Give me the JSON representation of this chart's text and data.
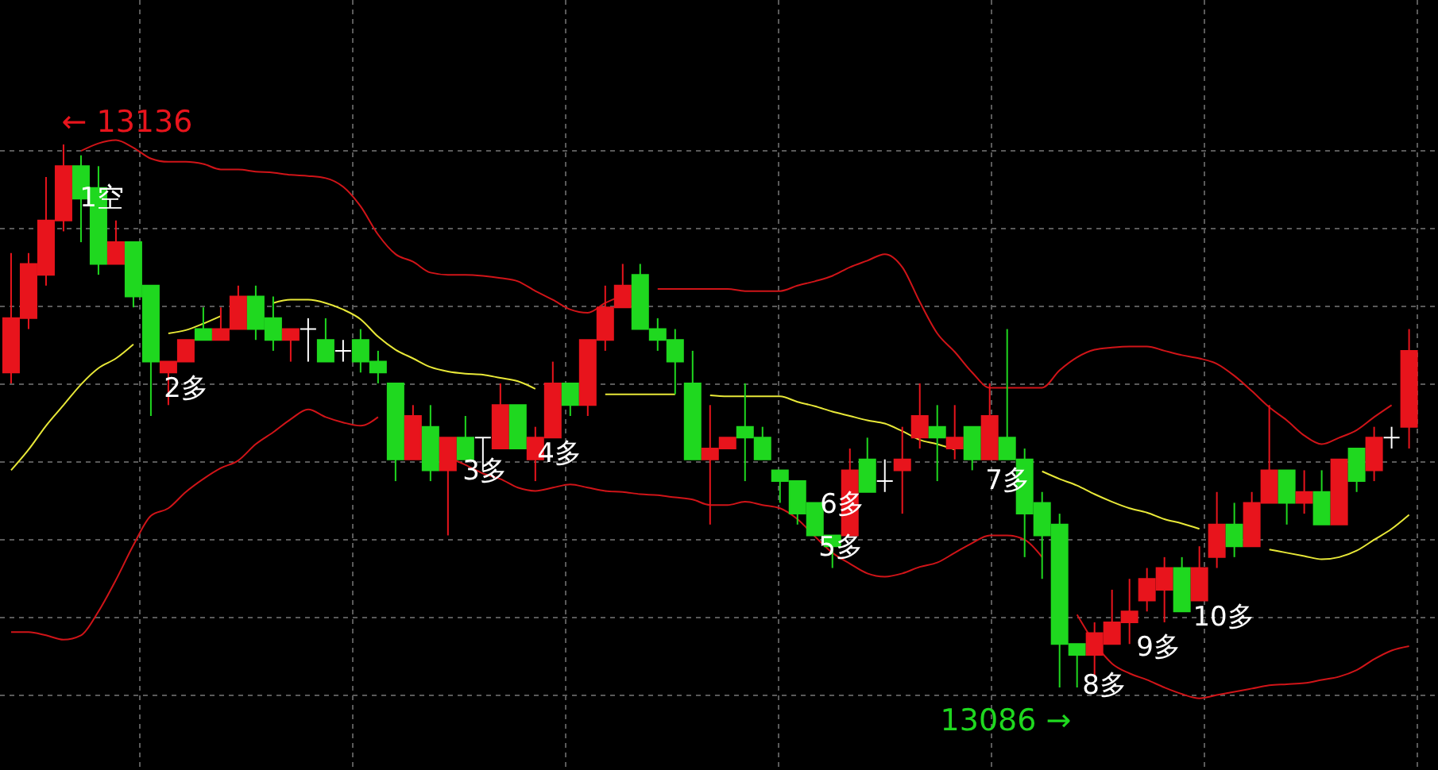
{
  "chart_data": {
    "type": "candlestick",
    "grid": true,
    "categories": [
      null,
      null,
      null,
      null,
      null,
      null,
      null,
      null,
      null,
      null,
      null,
      null,
      null,
      null,
      null,
      null,
      null,
      null,
      null,
      null,
      null,
      null,
      null,
      null,
      null,
      null,
      null,
      null,
      null,
      null,
      null,
      null,
      null,
      null,
      null,
      null,
      null,
      null,
      null,
      null,
      null,
      null,
      null,
      null,
      null,
      null,
      null,
      null,
      null,
      null,
      null,
      null,
      null,
      null,
      null,
      null,
      null,
      null,
      null,
      null,
      null,
      null,
      null,
      null,
      null,
      null,
      null,
      null,
      null,
      null,
      null,
      null,
      null,
      null,
      null,
      null,
      null,
      null,
      null,
      null,
      null
    ],
    "ohlc": [
      [
        13115,
        13126,
        13114,
        13120
      ],
      [
        13120,
        13126,
        13119,
        13125
      ],
      [
        13124,
        13133,
        13123,
        13129
      ],
      [
        13129,
        13136,
        13128,
        13134
      ],
      [
        13134,
        13135,
        13127,
        13131
      ],
      [
        13132,
        13134,
        13124,
        13125
      ],
      [
        13125,
        13129,
        13125,
        13127
      ],
      [
        13127,
        13127,
        13121,
        13122
      ],
      [
        13123,
        13123,
        13111,
        13116
      ],
      [
        13115,
        13116,
        13112,
        13116
      ],
      [
        13116,
        13118,
        13116,
        13118
      ],
      [
        13119,
        13121,
        13118,
        13118
      ],
      [
        13118,
        13121,
        13118,
        13119
      ],
      [
        13119,
        13123,
        13119,
        13122
      ],
      [
        13122,
        13123,
        13118,
        13119
      ],
      [
        13120,
        13122,
        13117,
        13118
      ],
      [
        13118,
        13119,
        13116,
        13119
      ],
      [
        13119,
        13120,
        13116,
        13119
      ],
      [
        13118,
        13120,
        13116,
        13116
      ],
      [
        13117,
        13118,
        13116,
        13117
      ],
      [
        13118,
        13119,
        13115,
        13116
      ],
      [
        13116,
        13117,
        13114,
        13115
      ],
      [
        13114,
        13114,
        13105,
        13107
      ],
      [
        13107,
        13112,
        13107,
        13111
      ],
      [
        13110,
        13112,
        13105,
        13106
      ],
      [
        13106,
        13109,
        13100,
        13109
      ],
      [
        13109,
        13111,
        13107,
        13107
      ],
      [
        13109,
        13109,
        13106,
        13109
      ],
      [
        13108,
        13114,
        13108,
        13112
      ],
      [
        13112,
        13112,
        13108,
        13108
      ],
      [
        13107,
        13110,
        13105,
        13109
      ],
      [
        13109,
        13116,
        13109,
        13114
      ],
      [
        13114,
        13114,
        13111,
        13112
      ],
      [
        13112,
        13118,
        13111,
        13118
      ],
      [
        13118,
        13123,
        13117,
        13121
      ],
      [
        13121,
        13125,
        13121,
        13123
      ],
      [
        13124,
        13125,
        13119,
        13119
      ],
      [
        13119,
        13120,
        13117,
        13118
      ],
      [
        13118,
        13119,
        13113,
        13116
      ],
      [
        13114,
        13117,
        13107,
        13107
      ],
      [
        13107,
        13112,
        13101,
        13108
      ],
      [
        13108,
        13109,
        13108,
        13109
      ],
      [
        13110,
        13114,
        13105,
        13109
      ],
      [
        13109,
        13110,
        13107,
        13107
      ],
      [
        13106,
        13106,
        13103,
        13105
      ],
      [
        13105,
        13105,
        13101,
        13102
      ],
      [
        13103,
        13103,
        13100,
        13100
      ],
      [
        13100,
        13100,
        13097,
        13099
      ],
      [
        13100,
        13108,
        13100,
        13106
      ],
      [
        13107,
        13109,
        13104,
        13104
      ],
      [
        13105,
        13107,
        13104,
        13105
      ],
      [
        13106,
        13110,
        13102,
        13107
      ],
      [
        13109,
        13114,
        13108,
        13111
      ],
      [
        13110,
        13112,
        13105,
        13109
      ],
      [
        13108,
        13112,
        13107,
        13109
      ],
      [
        13110,
        13110,
        13106,
        13107
      ],
      [
        13107,
        13114,
        13107,
        13111
      ],
      [
        13109,
        13119,
        13107,
        13107
      ],
      [
        13107,
        13108,
        13098,
        13102
      ],
      [
        13103,
        13104,
        13096,
        13100
      ],
      [
        13101,
        13102,
        13086,
        13090
      ],
      [
        13090,
        13090,
        13086,
        13089
      ],
      [
        13089,
        13092,
        13087,
        13091
      ],
      [
        13090,
        13095,
        13090,
        13092
      ],
      [
        13092,
        13096,
        13090,
        13093
      ],
      [
        13094,
        13097,
        13093,
        13096
      ],
      [
        13095,
        13098,
        13092,
        13097
      ],
      [
        13097,
        13098,
        13093,
        13093
      ],
      [
        13094,
        13099,
        13094,
        13097
      ],
      [
        13098,
        13104,
        13097,
        13101
      ],
      [
        13101,
        13103,
        13098,
        13099
      ],
      [
        13099,
        13104,
        13099,
        13103
      ],
      [
        13103,
        13112,
        13103,
        13106
      ],
      [
        13106,
        13106,
        13101,
        13103
      ],
      [
        13103,
        13106,
        13102,
        13104
      ],
      [
        13104,
        13106,
        13101,
        13101
      ],
      [
        13101,
        13107,
        13101,
        13107
      ],
      [
        13108,
        13108,
        13104,
        13105
      ],
      [
        13106,
        13110,
        13105,
        13109
      ],
      [
        13109,
        13110,
        13108,
        13109
      ],
      [
        13110,
        13119,
        13108,
        13117
      ]
    ],
    "series": [
      {
        "type": "line",
        "color": "#d01418",
        "values": [
          null,
          null,
          null,
          null,
          13135.4,
          13136.1,
          13136.4,
          13135.7,
          13134.7,
          13134.4,
          13134.4,
          13134.2,
          13133.7,
          13133.7,
          13133.5,
          13133.4,
          13133.2,
          13133.1,
          13132.9,
          13132.1,
          13130.3,
          13127.7,
          13125.9,
          13125.2,
          13124.2,
          13124.0,
          13124.0,
          13123.9,
          13123.7,
          13123.4,
          13122.5,
          13121.7,
          13120.8,
          13120.5,
          13121.4,
          13122.1,
          null,
          13122.7,
          13122.7,
          13122.7,
          13122.7,
          13122.7,
          13122.5,
          13122.5,
          13122.5,
          13123.0,
          13123.4,
          13123.9,
          13124.7,
          13125.3,
          13125.9,
          13124.7,
          13121.5,
          13118.6,
          13116.9,
          13115.0,
          13113.6,
          13113.6,
          13113.6,
          13113.6,
          13115.2,
          13116.4,
          13117.1,
          13117.3,
          13117.4,
          13117.4,
          13117.0,
          13116.6,
          13116.3,
          13115.8,
          13114.7,
          13113.3,
          13111.8,
          13110.6,
          13109.2,
          13108.4,
          13109.0,
          13109.7,
          13110.9,
          13112.0,
          null
        ]
      },
      {
        "type": "line",
        "color": "#e8e838",
        "values": [
          13106.0,
          13107.9,
          13110.1,
          13112.0,
          13113.9,
          13115.4,
          13116.3,
          13117.6,
          null,
          13118.6,
          13118.9,
          13119.5,
          13120.2,
          null,
          null,
          13121.4,
          13121.7,
          13121.7,
          13121.4,
          13120.8,
          13119.9,
          13118.3,
          13117.1,
          13116.3,
          13115.5,
          13115.1,
          13114.9,
          13114.8,
          13114.5,
          13114.2,
          13113.5,
          null,
          null,
          null,
          13113.0,
          13113.0,
          13113.0,
          13113.0,
          13113.0,
          null,
          13112.9,
          13112.8,
          13112.8,
          13112.8,
          13112.8,
          13112.3,
          13111.9,
          13111.4,
          13111.0,
          13110.6,
          13110.3,
          13109.6,
          13108.8,
          13108.4,
          13107.9,
          null,
          null,
          null,
          null,
          13105.9,
          13105.2,
          13104.6,
          13103.8,
          13103.1,
          13102.5,
          13102.1,
          13101.5,
          13101.1,
          13100.6,
          null,
          null,
          null,
          13098.7,
          13098.4,
          13098.1,
          13097.8,
          13098.0,
          13098.6,
          13099.6,
          13100.6,
          13101.9
        ]
      },
      {
        "type": "line",
        "color": "#d01418",
        "values": [
          13091.1,
          13091.1,
          13090.8,
          13090.4,
          13090.8,
          13093.0,
          13095.9,
          13099.1,
          13101.8,
          13102.5,
          13104.0,
          13105.2,
          13106.2,
          13106.9,
          13108.4,
          13109.5,
          13110.7,
          13111.6,
          13110.9,
          13110.4,
          13110.1,
          13110.9,
          null,
          null,
          null,
          13107.2,
          13106.5,
          13105.7,
          13105.2,
          13104.4,
          13104.1,
          13104.4,
          13104.7,
          13104.4,
          13104.1,
          13104.0,
          13103.8,
          13103.7,
          13103.5,
          13103.3,
          13102.8,
          13102.8,
          13103.1,
          13102.8,
          13102.5,
          13101.5,
          13099.9,
          13098.4,
          13097.4,
          13096.5,
          13096.2,
          13096.5,
          13097.1,
          13097.5,
          13098.4,
          13099.3,
          13100.0,
          13100.0,
          13099.6,
          13098.0,
          null,
          13092.7,
          13090.1,
          13088.2,
          13087.3,
          13086.7,
          13086.0,
          13085.4,
          13085.0,
          13085.3,
          13085.6,
          13085.9,
          13086.2,
          13086.3,
          13086.4,
          13086.7,
          13087.0,
          13087.6,
          13088.6,
          13089.4,
          13089.8
        ]
      }
    ],
    "annotations": [
      "1空",
      "2多",
      "3多",
      "4多",
      "5多",
      "6多",
      "7多",
      "8多",
      "9多",
      "10多",
      "← 13136",
      "13086 →"
    ]
  }
}
